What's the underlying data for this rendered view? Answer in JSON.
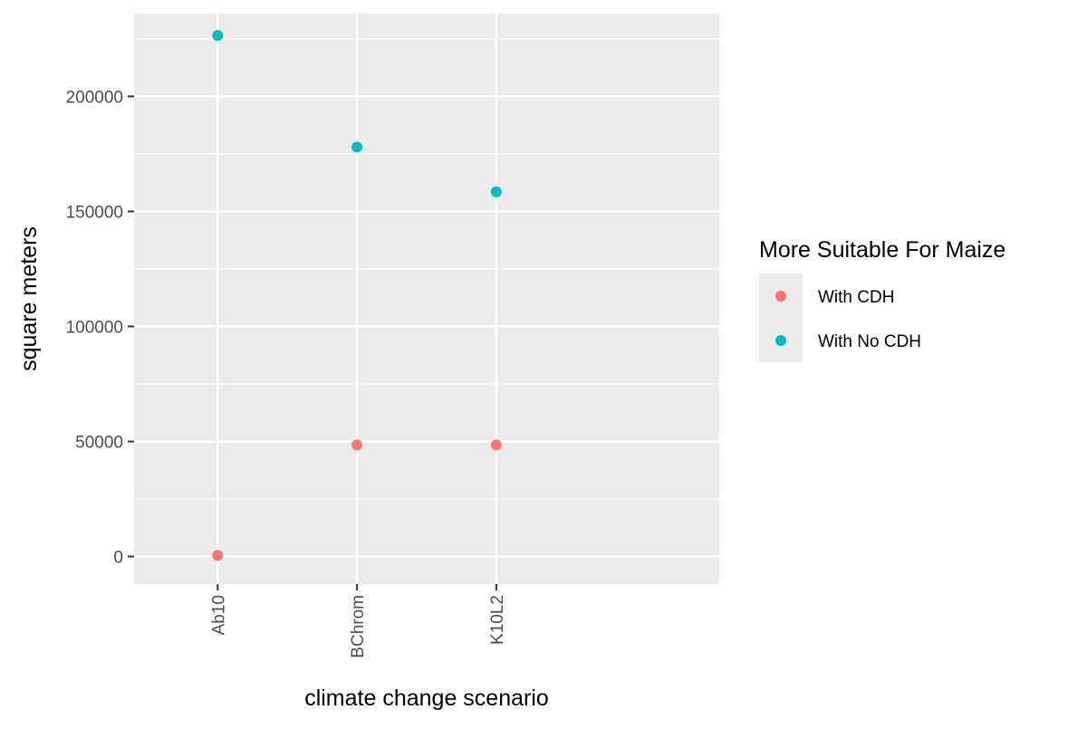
{
  "chart_data": {
    "type": "scatter",
    "title": "",
    "xlabel": "climate change scenario",
    "ylabel": "square meters",
    "categories": [
      "Ab10",
      "BChrom",
      "K10L2"
    ],
    "ylim": [
      -12000,
      236000
    ],
    "yticks": [
      0,
      50000,
      100000,
      150000,
      200000
    ],
    "ytick_labels": [
      "0",
      "50000",
      "100000",
      "150000",
      "200000"
    ],
    "grid": true,
    "legend": {
      "title": "More Suitable For Maize",
      "position": "right"
    },
    "series": [
      {
        "name": "With CDH",
        "color": "#F8766D",
        "values": [
          500,
          48500,
          48500
        ]
      },
      {
        "name": "With No CDH",
        "color": "#00BFC4",
        "values": [
          226500,
          178000,
          158500
        ]
      }
    ]
  }
}
